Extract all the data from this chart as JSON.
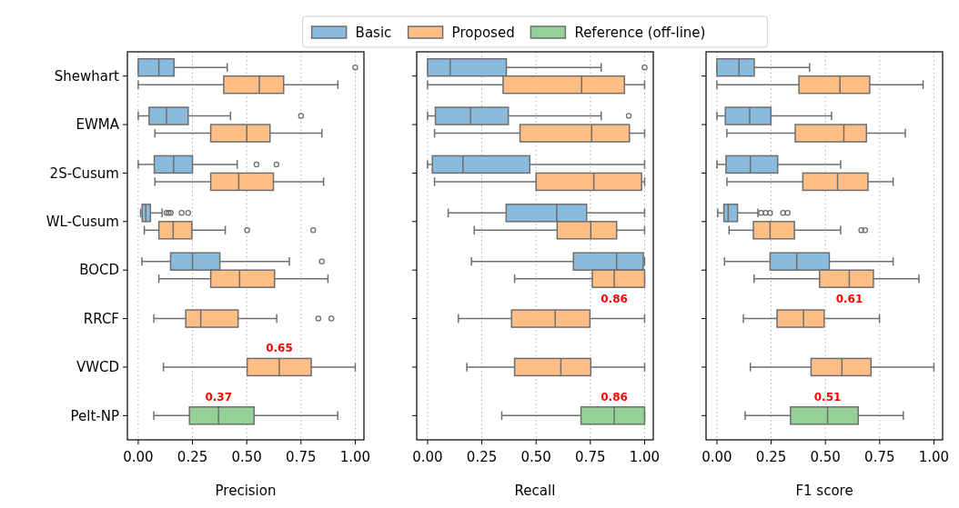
{
  "chart_data": [
    {
      "type": "box",
      "xlabel": "Precision",
      "categories": [
        "Shewhart",
        "EWMA",
        "2S-Cusum",
        "WL-Cusum",
        "BOCD",
        "RRCF",
        "VWCD",
        "Pelt-NP"
      ],
      "orientation": "horizontal",
      "xlim": [
        -0.05,
        1.04
      ],
      "xticks": [
        {
          "value": 0,
          "label": "0.00"
        },
        {
          "value": 0.25,
          "label": "0.25"
        },
        {
          "value": 0.5,
          "label": "0.50"
        },
        {
          "value": 0.75,
          "label": "0.75"
        },
        {
          "value": 1,
          "label": "1.00"
        }
      ],
      "grid": "x",
      "legend": "top",
      "line_style": "dotted",
      "series": [
        {
          "name": "Basic",
          "color": "#88bbdd",
          "boxes": [
            {
              "low": 0,
              "q1": 0,
              "median": 0.095,
              "q3": 0.165,
              "high": 0.41,
              "outliers": [
                1.0
              ]
            },
            {
              "low": 0,
              "q1": 0.05,
              "median": 0.13,
              "q3": 0.23,
              "high": 0.425,
              "outliers": [
                0.75
              ]
            },
            {
              "low": 0,
              "q1": 0.074,
              "median": 0.163,
              "q3": 0.25,
              "high": 0.456,
              "outliers": [
                0.545,
                0.637
              ]
            },
            {
              "low": 0.011,
              "q1": 0.018,
              "median": 0.035,
              "q3": 0.056,
              "high": 0.11,
              "outliers": [
                0.13,
                0.14,
                0.15,
                0.2,
                0.23
              ]
            },
            {
              "low": 0.017,
              "q1": 0.149,
              "median": 0.25,
              "q3": 0.376,
              "high": 0.696,
              "outliers": [
                0.846
              ]
            },
            null,
            null,
            null
          ]
        },
        {
          "name": "Proposed",
          "color": "#ffbe86",
          "boxes": [
            {
              "low": 0,
              "q1": 0.394,
              "median": 0.558,
              "q3": 0.67,
              "high": 0.92
            },
            {
              "low": 0.077,
              "q1": 0.334,
              "median": 0.5,
              "q3": 0.607,
              "high": 0.846
            },
            {
              "low": 0.077,
              "q1": 0.334,
              "median": 0.463,
              "q3": 0.623,
              "high": 0.854
            },
            {
              "low": 0.028,
              "q1": 0.095,
              "median": 0.161,
              "q3": 0.247,
              "high": 0.401,
              "outliers": [
                0.502,
                0.806
              ]
            },
            {
              "low": 0.095,
              "q1": 0.334,
              "median": 0.467,
              "q3": 0.628,
              "high": 0.874
            },
            {
              "low": 0.072,
              "q1": 0.219,
              "median": 0.288,
              "q3": 0.46,
              "high": 0.638,
              "outliers": [
                0.83,
                0.89
              ]
            },
            {
              "low": 0.116,
              "q1": 0.502,
              "median": 0.65,
              "q3": 0.797,
              "high": 1.0
            },
            null
          ]
        },
        {
          "name": "Reference (off-line)",
          "color": "#95d096",
          "boxes": [
            null,
            null,
            null,
            null,
            null,
            null,
            null,
            {
              "low": 0.072,
              "q1": 0.236,
              "median": 0.37,
              "q3": 0.534,
              "high": 0.919
            }
          ]
        }
      ],
      "annotations": [
        {
          "text": "0.65",
          "x": 0.65,
          "y": "VWCD"
        },
        {
          "text": "0.37",
          "x": 0.37,
          "y": "Pelt-NP"
        }
      ]
    },
    {
      "type": "box",
      "xlabel": "Recall",
      "categories": [
        "Shewhart",
        "EWMA",
        "2S-Cusum",
        "WL-Cusum",
        "BOCD",
        "RRCF",
        "VWCD",
        "Pelt-NP"
      ],
      "orientation": "horizontal",
      "tick_labels": "x",
      "xlim": [
        -0.05,
        1.04
      ],
      "xticks": [
        {
          "value": 0,
          "label": "0.00"
        },
        {
          "value": 0.25,
          "label": "0.25"
        },
        {
          "value": 0.5,
          "label": "0.50"
        },
        {
          "value": 0.75,
          "label": "0.75"
        },
        {
          "value": 1,
          "label": "1.00"
        }
      ],
      "grid": "x",
      "line_style": "dotted",
      "series": [
        {
          "color": "#88bbdd",
          "boxes": [
            {
              "low": 0,
              "q1": 0,
              "median": 0.104,
              "q3": 0.363,
              "high": 0.8,
              "outliers": [
                1.0
              ]
            },
            {
              "low": 0,
              "q1": 0.036,
              "median": 0.198,
              "q3": 0.372,
              "high": 0.8,
              "outliers": [
                0.927
              ]
            },
            {
              "low": 0,
              "q1": 0.022,
              "median": 0.163,
              "q3": 0.471,
              "high": 1.0
            },
            {
              "low": 0.095,
              "q1": 0.362,
              "median": 0.595,
              "q3": 0.733,
              "high": 1.0
            },
            {
              "low": 0.202,
              "q1": 0.672,
              "median": 0.871,
              "q3": 0.994,
              "high": 1.0
            },
            null,
            null,
            null
          ]
        },
        {
          "color": "#ffbe86",
          "boxes": [
            {
              "low": 0,
              "q1": 0.348,
              "median": 0.71,
              "q3": 0.907,
              "high": 1.0
            },
            {
              "low": 0.032,
              "q1": 0.426,
              "median": 0.756,
              "q3": 0.93,
              "high": 1.0
            },
            {
              "low": 0.032,
              "q1": 0.5,
              "median": 0.766,
              "q3": 0.986,
              "high": 1.0
            },
            {
              "low": 0.215,
              "q1": 0.597,
              "median": 0.752,
              "q3": 0.871,
              "high": 1.0
            },
            {
              "low": 0.401,
              "q1": 0.759,
              "median": 0.86,
              "q3": 1.0,
              "high": 1.0
            },
            {
              "low": 0.142,
              "q1": 0.387,
              "median": 0.588,
              "q3": 0.748,
              "high": 1.0
            },
            {
              "low": 0.181,
              "q1": 0.401,
              "median": 0.614,
              "q3": 0.752,
              "high": 1.0
            },
            null
          ]
        },
        {
          "color": "#95d096",
          "boxes": [
            null,
            null,
            null,
            null,
            null,
            null,
            null,
            {
              "low": 0.342,
              "q1": 0.707,
              "median": 0.86,
              "q3": 1.0,
              "high": 1.0
            }
          ]
        }
      ],
      "annotations": [
        {
          "text": "0.86",
          "x": 0.86,
          "y": "BOCD"
        },
        {
          "text": "0.86",
          "x": 0.86,
          "y": "Pelt-NP"
        }
      ]
    },
    {
      "type": "box",
      "xlabel": "F1 score",
      "categories": [
        "Shewhart",
        "EWMA",
        "2S-Cusum",
        "WL-Cusum",
        "BOCD",
        "RRCF",
        "VWCD",
        "Pelt-NP"
      ],
      "orientation": "horizontal",
      "tick_labels": "x",
      "xlim": [
        -0.05,
        1.04
      ],
      "xticks": [
        {
          "value": 0,
          "label": "0.00"
        },
        {
          "value": 0.25,
          "label": "0.25"
        },
        {
          "value": 0.5,
          "label": "0.50"
        },
        {
          "value": 0.75,
          "label": "0.75"
        },
        {
          "value": 1,
          "label": "1.00"
        }
      ],
      "grid": "x",
      "line_style": "dotted",
      "series": [
        {
          "color": "#88bbdd",
          "boxes": [
            {
              "low": 0,
              "q1": 0,
              "median": 0.102,
              "q3": 0.172,
              "high": 0.427
            },
            {
              "low": 0,
              "q1": 0.039,
              "median": 0.151,
              "q3": 0.249,
              "high": 0.528
            },
            {
              "low": 0,
              "q1": 0.042,
              "median": 0.154,
              "q3": 0.28,
              "high": 0.57
            },
            {
              "low": 0.004,
              "q1": 0.032,
              "median": 0.052,
              "q3": 0.095,
              "high": 0.189,
              "outliers": [
                0.203,
                0.224,
                0.245,
                0.305,
                0.326
              ]
            },
            {
              "low": 0.035,
              "q1": 0.245,
              "median": 0.368,
              "q3": 0.518,
              "high": 0.812
            },
            null,
            null,
            null
          ]
        },
        {
          "color": "#ffbe86",
          "boxes": [
            {
              "low": 0,
              "q1": 0.378,
              "median": 0.567,
              "q3": 0.704,
              "high": 0.95
            },
            {
              "low": 0.046,
              "q1": 0.361,
              "median": 0.585,
              "q3": 0.689,
              "high": 0.868
            },
            {
              "low": 0.046,
              "q1": 0.396,
              "median": 0.556,
              "q3": 0.696,
              "high": 0.812
            },
            {
              "low": 0.056,
              "q1": 0.168,
              "median": 0.245,
              "q3": 0.357,
              "high": 0.57,
              "outliers": [
                0.665,
                0.683
              ]
            },
            {
              "low": 0.171,
              "q1": 0.473,
              "median": 0.61,
              "q3": 0.721,
              "high": 0.931
            },
            {
              "low": 0.122,
              "q1": 0.277,
              "median": 0.399,
              "q3": 0.494,
              "high": 0.749
            },
            {
              "low": 0.154,
              "q1": 0.434,
              "median": 0.576,
              "q3": 0.71,
              "high": 1.0
            },
            null
          ]
        },
        {
          "color": "#95d096",
          "boxes": [
            null,
            null,
            null,
            null,
            null,
            null,
            null,
            {
              "low": 0.13,
              "q1": 0.339,
              "median": 0.51,
              "q3": 0.651,
              "high": 0.859
            }
          ]
        }
      ],
      "annotations": [
        {
          "text": "0.61",
          "x": 0.61,
          "y": "BOCD"
        },
        {
          "text": "0.51",
          "x": 0.51,
          "y": "Pelt-NP"
        }
      ]
    }
  ]
}
